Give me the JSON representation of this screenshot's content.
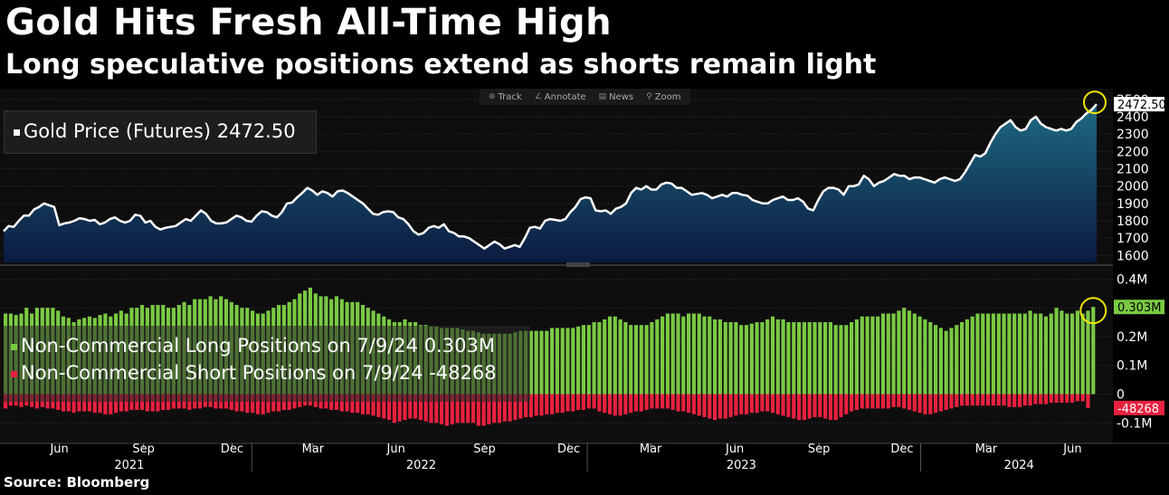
{
  "title": "Gold Hits Fresh All-Time High",
  "subtitle": "Long speculative positions extend as shorts remain light",
  "source": "Source: Bloomberg",
  "toolbar": [
    {
      "icon": "track-icon",
      "glyph": "⊕",
      "label": "Track"
    },
    {
      "icon": "annotate-icon",
      "glyph": "∠",
      "label": "Annotate"
    },
    {
      "icon": "news-icon",
      "glyph": "▤",
      "label": "News"
    },
    {
      "icon": "zoom-icon",
      "glyph": "⚲",
      "label": "Zoom"
    }
  ],
  "legend": {
    "gold": "Gold Price (Futures) 2472.50",
    "long": "Non-Commercial Long Positions on 7/9/24  0.303M",
    "short": "Non-Commercial Short Positions on 7/9/24 -48268"
  },
  "colors": {
    "gold_line": "#ffffff",
    "gold_area_top": "#1e6a82",
    "gold_area_bottom": "#0c1a40",
    "long": "#7ac943",
    "short": "#e8213f",
    "highlight": "#f2e500"
  },
  "chart_data": [
    {
      "type": "area",
      "series": [
        {
          "name": "Gold Price (Futures)",
          "last_value_label": "2472.50",
          "values": [
            1740,
            1770,
            1765,
            1800,
            1830,
            1830,
            1865,
            1880,
            1900,
            1890,
            1880,
            1775,
            1785,
            1790,
            1800,
            1815,
            1810,
            1800,
            1805,
            1780,
            1790,
            1810,
            1820,
            1800,
            1790,
            1800,
            1835,
            1830,
            1790,
            1800,
            1765,
            1750,
            1760,
            1765,
            1770,
            1790,
            1810,
            1800,
            1830,
            1860,
            1840,
            1800,
            1785,
            1785,
            1790,
            1810,
            1830,
            1820,
            1800,
            1795,
            1830,
            1855,
            1850,
            1830,
            1820,
            1850,
            1900,
            1905,
            1935,
            1960,
            1990,
            1975,
            1950,
            1970,
            1960,
            1940,
            1970,
            1975,
            1960,
            1940,
            1920,
            1900,
            1870,
            1840,
            1835,
            1850,
            1855,
            1850,
            1820,
            1810,
            1780,
            1740,
            1720,
            1730,
            1760,
            1770,
            1760,
            1780,
            1740,
            1730,
            1710,
            1710,
            1700,
            1680,
            1660,
            1640,
            1660,
            1680,
            1665,
            1640,
            1650,
            1660,
            1650,
            1700,
            1760,
            1765,
            1755,
            1800,
            1810,
            1805,
            1800,
            1810,
            1850,
            1880,
            1925,
            1935,
            1930,
            1860,
            1855,
            1860,
            1840,
            1870,
            1880,
            1900,
            1960,
            1990,
            1980,
            2000,
            1980,
            1980,
            2010,
            2020,
            2015,
            1990,
            1990,
            1970,
            1950,
            1955,
            1960,
            1950,
            1930,
            1940,
            1950,
            1940,
            1960,
            1960,
            1950,
            1945,
            1920,
            1910,
            1900,
            1900,
            1920,
            1930,
            1940,
            1920,
            1920,
            1930,
            1910,
            1870,
            1860,
            1920,
            1970,
            1990,
            1990,
            1980,
            1950,
            2000,
            2000,
            2010,
            2060,
            2040,
            2000,
            2020,
            2030,
            2050,
            2070,
            2060,
            2060,
            2040,
            2050,
            2050,
            2040,
            2030,
            2020,
            2040,
            2050,
            2040,
            2030,
            2040,
            2080,
            2130,
            2180,
            2170,
            2190,
            2250,
            2300,
            2340,
            2360,
            2380,
            2340,
            2320,
            2330,
            2380,
            2400,
            2360,
            2340,
            2330,
            2320,
            2330,
            2320,
            2330,
            2370,
            2390,
            2420,
            2440,
            2472.5
          ]
        }
      ],
      "y_ticks": [
        1600,
        1700,
        1800,
        1900,
        2000,
        2100,
        2200,
        2300,
        2400,
        2500
      ],
      "ylim": [
        1560,
        2520
      ]
    },
    {
      "type": "bar",
      "series": [
        {
          "name": "Non-Commercial Long Positions",
          "last_value_label": "0.303M",
          "values": [
            0.28,
            0.28,
            0.275,
            0.28,
            0.3,
            0.28,
            0.3,
            0.3,
            0.3,
            0.3,
            0.29,
            0.27,
            0.265,
            0.25,
            0.26,
            0.265,
            0.27,
            0.265,
            0.275,
            0.28,
            0.27,
            0.28,
            0.29,
            0.28,
            0.3,
            0.3,
            0.31,
            0.3,
            0.31,
            0.31,
            0.31,
            0.3,
            0.3,
            0.31,
            0.32,
            0.31,
            0.33,
            0.33,
            0.33,
            0.34,
            0.33,
            0.34,
            0.33,
            0.32,
            0.31,
            0.3,
            0.3,
            0.29,
            0.28,
            0.28,
            0.29,
            0.3,
            0.31,
            0.31,
            0.32,
            0.33,
            0.35,
            0.36,
            0.37,
            0.35,
            0.34,
            0.34,
            0.33,
            0.34,
            0.33,
            0.32,
            0.32,
            0.32,
            0.31,
            0.3,
            0.29,
            0.28,
            0.27,
            0.26,
            0.25,
            0.25,
            0.26,
            0.25,
            0.25,
            0.24,
            0.24,
            0.235,
            0.235,
            0.23,
            0.23,
            0.23,
            0.23,
            0.225,
            0.22,
            0.22,
            0.215,
            0.21,
            0.21,
            0.21,
            0.21,
            0.21,
            0.21,
            0.215,
            0.22,
            0.22,
            0.22,
            0.22,
            0.22,
            0.22,
            0.23,
            0.23,
            0.23,
            0.23,
            0.23,
            0.235,
            0.24,
            0.24,
            0.25,
            0.25,
            0.26,
            0.27,
            0.27,
            0.26,
            0.25,
            0.24,
            0.24,
            0.24,
            0.24,
            0.25,
            0.26,
            0.27,
            0.28,
            0.28,
            0.28,
            0.27,
            0.28,
            0.28,
            0.28,
            0.27,
            0.27,
            0.26,
            0.26,
            0.25,
            0.25,
            0.25,
            0.24,
            0.24,
            0.245,
            0.25,
            0.25,
            0.26,
            0.27,
            0.26,
            0.26,
            0.25,
            0.25,
            0.25,
            0.25,
            0.25,
            0.25,
            0.25,
            0.25,
            0.25,
            0.24,
            0.24,
            0.24,
            0.25,
            0.26,
            0.27,
            0.27,
            0.27,
            0.27,
            0.28,
            0.28,
            0.28,
            0.29,
            0.3,
            0.29,
            0.28,
            0.27,
            0.26,
            0.25,
            0.24,
            0.23,
            0.22,
            0.23,
            0.24,
            0.25,
            0.26,
            0.27,
            0.28,
            0.28,
            0.28,
            0.28,
            0.28,
            0.28,
            0.28,
            0.28,
            0.28,
            0.28,
            0.29,
            0.28,
            0.28,
            0.27,
            0.28,
            0.3,
            0.29,
            0.28,
            0.28,
            0.29,
            0.28,
            0.29,
            0.303
          ]
        },
        {
          "name": "Non-Commercial Short Positions",
          "last_value_label": "-48268",
          "values": [
            -0.05,
            -0.04,
            -0.04,
            -0.045,
            -0.04,
            -0.045,
            -0.05,
            -0.045,
            -0.05,
            -0.05,
            -0.055,
            -0.06,
            -0.06,
            -0.065,
            -0.06,
            -0.06,
            -0.06,
            -0.065,
            -0.065,
            -0.07,
            -0.07,
            -0.065,
            -0.06,
            -0.06,
            -0.055,
            -0.055,
            -0.055,
            -0.06,
            -0.06,
            -0.06,
            -0.055,
            -0.055,
            -0.05,
            -0.05,
            -0.05,
            -0.055,
            -0.05,
            -0.05,
            -0.045,
            -0.045,
            -0.05,
            -0.05,
            -0.05,
            -0.055,
            -0.06,
            -0.06,
            -0.065,
            -0.065,
            -0.07,
            -0.07,
            -0.065,
            -0.06,
            -0.06,
            -0.055,
            -0.055,
            -0.05,
            -0.045,
            -0.04,
            -0.04,
            -0.045,
            -0.05,
            -0.05,
            -0.055,
            -0.055,
            -0.06,
            -0.06,
            -0.065,
            -0.065,
            -0.07,
            -0.07,
            -0.075,
            -0.08,
            -0.085,
            -0.09,
            -0.1,
            -0.095,
            -0.09,
            -0.085,
            -0.085,
            -0.09,
            -0.095,
            -0.1,
            -0.1,
            -0.105,
            -0.11,
            -0.105,
            -0.1,
            -0.1,
            -0.1,
            -0.1,
            -0.11,
            -0.11,
            -0.105,
            -0.1,
            -0.1,
            -0.095,
            -0.095,
            -0.09,
            -0.085,
            -0.08,
            -0.08,
            -0.075,
            -0.075,
            -0.07,
            -0.07,
            -0.065,
            -0.065,
            -0.06,
            -0.06,
            -0.055,
            -0.055,
            -0.05,
            -0.05,
            -0.06,
            -0.065,
            -0.07,
            -0.075,
            -0.075,
            -0.07,
            -0.065,
            -0.06,
            -0.06,
            -0.055,
            -0.05,
            -0.05,
            -0.05,
            -0.05,
            -0.055,
            -0.06,
            -0.06,
            -0.065,
            -0.07,
            -0.075,
            -0.08,
            -0.085,
            -0.09,
            -0.085,
            -0.085,
            -0.08,
            -0.075,
            -0.07,
            -0.07,
            -0.065,
            -0.065,
            -0.06,
            -0.06,
            -0.065,
            -0.07,
            -0.075,
            -0.08,
            -0.085,
            -0.09,
            -0.09,
            -0.085,
            -0.08,
            -0.08,
            -0.085,
            -0.09,
            -0.09,
            -0.08,
            -0.07,
            -0.06,
            -0.055,
            -0.05,
            -0.05,
            -0.05,
            -0.05,
            -0.05,
            -0.05,
            -0.045,
            -0.045,
            -0.05,
            -0.055,
            -0.06,
            -0.065,
            -0.07,
            -0.07,
            -0.065,
            -0.06,
            -0.055,
            -0.05,
            -0.045,
            -0.04,
            -0.04,
            -0.04,
            -0.04,
            -0.04,
            -0.04,
            -0.04,
            -0.04,
            -0.04,
            -0.045,
            -0.045,
            -0.045,
            -0.04,
            -0.04,
            -0.035,
            -0.035,
            -0.035,
            -0.03,
            -0.03,
            -0.03,
            -0.03,
            -0.03,
            -0.025,
            -0.025,
            -0.048268
          ]
        }
      ],
      "y_ticks": [
        -0.1,
        0,
        0.1,
        0.2,
        0.3,
        0.4
      ],
      "y_tick_labels": [
        "-0.1M",
        "0",
        "0.1M",
        "0.2M",
        "0.3M",
        "0.4M"
      ],
      "ylim": [
        -0.14,
        0.42
      ]
    }
  ],
  "x_axis": {
    "month_labels": [
      {
        "label": "Jun",
        "t": 0.051
      },
      {
        "label": "Sep",
        "t": 0.128
      },
      {
        "label": "Dec",
        "t": 0.209
      },
      {
        "label": "Mar",
        "t": 0.283
      },
      {
        "label": "Jun",
        "t": 0.359
      },
      {
        "label": "Sep",
        "t": 0.44
      },
      {
        "label": "Dec",
        "t": 0.517
      },
      {
        "label": "Mar",
        "t": 0.592
      },
      {
        "label": "Jun",
        "t": 0.669
      },
      {
        "label": "Sep",
        "t": 0.746
      },
      {
        "label": "Dec",
        "t": 0.822
      },
      {
        "label": "Mar",
        "t": 0.899
      },
      {
        "label": "Jun",
        "t": 0.978
      }
    ],
    "year_labels": [
      {
        "label": "2021",
        "t": 0.115
      },
      {
        "label": "2022",
        "t": 0.382
      },
      {
        "label": "2023",
        "t": 0.675
      },
      {
        "label": "2024",
        "t": 0.929
      }
    ],
    "year_boundaries": [
      0.227,
      0.534,
      0.839
    ]
  }
}
